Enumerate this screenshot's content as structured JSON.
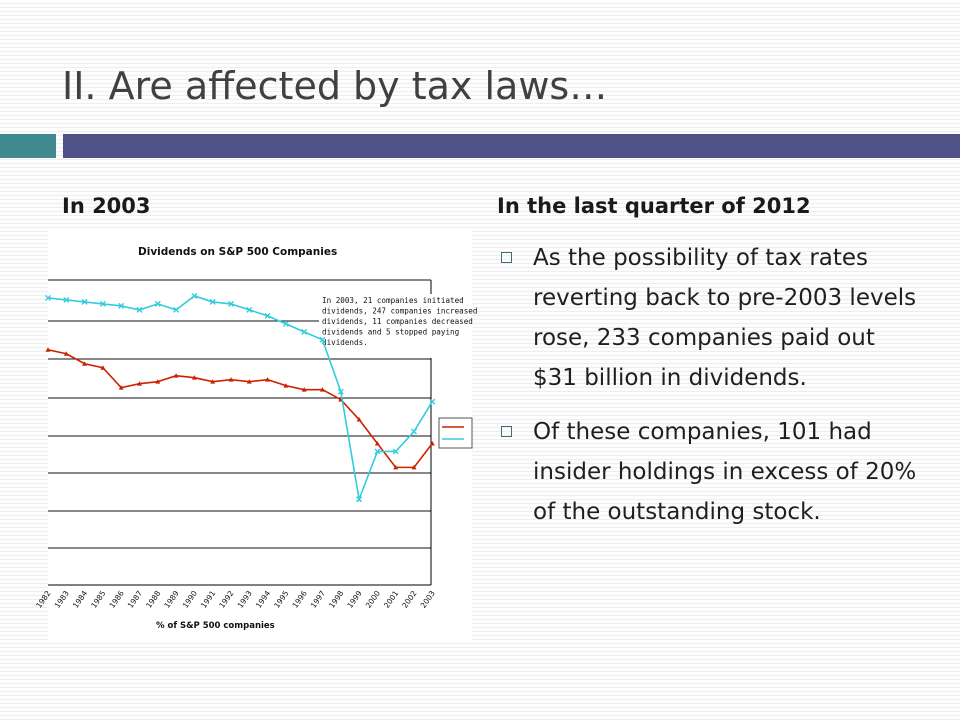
{
  "slide": {
    "title": "II. Are affected by tax laws…",
    "accent_colors": {
      "teal": "#3e8a8e",
      "navy": "#4f5286"
    }
  },
  "left_column": {
    "heading": "In 2003"
  },
  "right_column": {
    "heading": "In the last quarter of 2012",
    "bullets": [
      "As the possibility of tax rates reverting back to pre-2003 levels rose, 233 companies paid out $31 billion in dividends.",
      "Of these companies, 101 had insider holdings in excess of 20% of the outstanding stock."
    ],
    "bullet_icon": "hollow-square-bullet"
  },
  "chart_data": {
    "type": "line",
    "title": "Dividends on S&P 500 Companies",
    "xlabel": "% of S&P 500 companies",
    "ylabel": "",
    "x": [
      "1982",
      "1983",
      "1984",
      "1985",
      "1986",
      "1987",
      "1988",
      "1989",
      "1990",
      "1991",
      "1992",
      "1993",
      "1994",
      "1995",
      "1996",
      "1997",
      "1998",
      "1999",
      "2000",
      "2001",
      "2002",
      "2003"
    ],
    "series": [
      {
        "values": [
          55,
          53,
          48,
          46,
          36,
          38,
          39,
          42,
          41,
          39,
          40,
          39,
          40,
          37,
          35,
          35,
          30,
          20,
          8,
          -4,
          -4,
          8
        ],
        "color": "#cc2200"
      },
      {
        "values": [
          81,
          80,
          79,
          78,
          77,
          75,
          78,
          75,
          82,
          79,
          78,
          75,
          72,
          68,
          64,
          60,
          34,
          -20,
          4,
          4,
          14,
          29
        ],
        "color": "#33ccdd"
      }
    ],
    "ylim": [
      -63,
      90
    ],
    "grid": true,
    "legend": "right",
    "annotation": "In 2003, 21 companies initiated dividends, 247 companies increased dividends, 11 companies decreased dividends and 5 stopped paying dividends."
  }
}
